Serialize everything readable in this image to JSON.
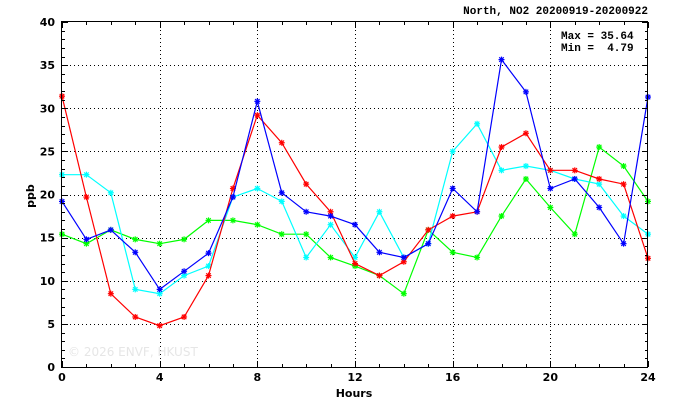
{
  "chart_data": {
    "type": "line",
    "title": "North, NO2 20200919-20200922",
    "xlabel": "Hours",
    "ylabel": "ppb",
    "xlim": [
      0,
      24
    ],
    "ylim": [
      0,
      40
    ],
    "xticks": [
      0,
      4,
      8,
      12,
      16,
      20,
      24
    ],
    "yticks": [
      0,
      5,
      10,
      15,
      20,
      25,
      30,
      35,
      40
    ],
    "grid": true,
    "stats": {
      "max_label": "Max = 35.64",
      "min_label": "Min =  4.79"
    },
    "watermark": "© 2026  ENVF, HKUST",
    "x": [
      0,
      1,
      2,
      3,
      4,
      5,
      6,
      7,
      8,
      9,
      10,
      11,
      12,
      13,
      14,
      15,
      16,
      17,
      18,
      19,
      20,
      21,
      22,
      23,
      24
    ],
    "series": [
      {
        "color": "#ff0000",
        "values": [
          31.4,
          19.7,
          8.5,
          5.8,
          4.79,
          5.8,
          10.6,
          20.7,
          29.2,
          26.0,
          21.2,
          18.0,
          12.0,
          10.6,
          12.2,
          15.9,
          17.5,
          18.0,
          25.5,
          27.1,
          22.8,
          22.8,
          21.8,
          21.2,
          12.6
        ]
      },
      {
        "color": "#0000ff",
        "values": [
          19.2,
          14.8,
          15.9,
          13.3,
          9.0,
          11.1,
          13.2,
          19.7,
          30.8,
          20.2,
          18.0,
          17.5,
          16.5,
          13.3,
          12.7,
          14.3,
          20.7,
          18.0,
          35.64,
          31.9,
          20.7,
          21.8,
          18.5,
          14.3,
          31.3
        ]
      },
      {
        "color": "#00ffff",
        "values": [
          22.3,
          22.3,
          20.2,
          9.0,
          8.5,
          10.6,
          11.7,
          19.7,
          20.7,
          19.2,
          12.7,
          16.5,
          12.7,
          18.0,
          12.7,
          14.3,
          25.0,
          28.2,
          22.8,
          23.3,
          22.8,
          21.8,
          21.2,
          17.5,
          15.4
        ]
      },
      {
        "color": "#00ff00",
        "values": [
          15.4,
          14.3,
          15.9,
          14.8,
          14.3,
          14.8,
          17.0,
          17.0,
          16.5,
          15.4,
          15.4,
          12.7,
          11.7,
          10.6,
          8.5,
          15.9,
          13.3,
          12.7,
          17.5,
          21.8,
          18.5,
          15.4,
          25.5,
          23.3,
          19.2
        ]
      }
    ]
  }
}
